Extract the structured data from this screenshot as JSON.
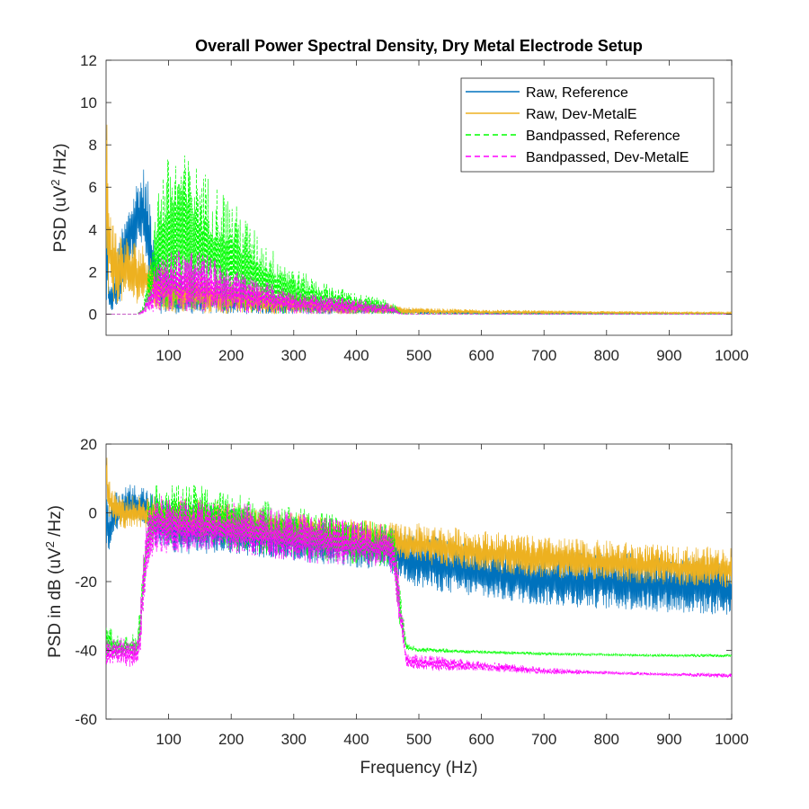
{
  "chart_data": [
    {
      "type": "line",
      "title": "Overall Power Spectral Density, Dry Metal Electrode Setup",
      "xlabel": "Frequency (Hz)",
      "ylabel": "PSD (uV² /Hz)",
      "ylabel_parts": {
        "pre": "PSD (uV",
        "sup": "2",
        "post": " /Hz)"
      },
      "xlim": [
        0,
        1000
      ],
      "ylim": [
        -1,
        12
      ],
      "xticks": [
        100,
        200,
        300,
        400,
        500,
        600,
        700,
        800,
        900,
        1000
      ],
      "yticks": [
        0,
        2,
        4,
        6,
        8,
        10,
        12
      ],
      "grid": false,
      "legend": "top-right",
      "series": [
        {
          "name": "Raw, Reference",
          "color": "#0072BD",
          "dash": "solid",
          "x": [
            0,
            5,
            10,
            20,
            30,
            40,
            50,
            60,
            70,
            80,
            90,
            100,
            120,
            150,
            200,
            250,
            300,
            350,
            400,
            450,
            460,
            500,
            600,
            700,
            800,
            900,
            1000
          ],
          "y_upper": [
            7.0,
            1.2,
            1.5,
            3.5,
            4.5,
            5.5,
            6.5,
            7.0,
            6.0,
            3.5,
            2.5,
            2.0,
            1.8,
            1.5,
            1.3,
            1.0,
            0.8,
            0.6,
            0.5,
            0.4,
            0.3,
            0.2,
            0.12,
            0.1,
            0.08,
            0.07,
            0.06
          ],
          "y_lower": [
            0.0,
            0.1,
            0.1,
            0.1,
            1.5,
            2.5,
            3.0,
            3.0,
            0.5,
            0.05,
            0.0,
            0.0,
            0.0,
            0.0,
            0.0,
            0.0,
            0.0,
            0.0,
            0.0,
            0.0,
            0.0,
            0.0,
            0.0,
            0.0,
            0.0,
            0.0,
            0.0
          ]
        },
        {
          "name": "Raw, Dev-MetalE",
          "color": "#EDB120",
          "dash": "solid",
          "x": [
            0,
            3,
            6,
            10,
            20,
            30,
            40,
            50,
            60,
            70,
            80,
            100,
            150,
            200,
            250,
            300,
            350,
            400,
            450,
            460,
            470,
            500,
            600,
            700,
            800,
            900,
            1000
          ],
          "y_upper": [
            12,
            8.0,
            6.0,
            4.5,
            4.0,
            3.8,
            3.5,
            3.5,
            3.3,
            3.0,
            2.5,
            2.2,
            2.0,
            1.6,
            1.3,
            1.0,
            0.8,
            0.65,
            0.5,
            0.45,
            0.35,
            0.3,
            0.22,
            0.18,
            0.15,
            0.12,
            0.1
          ],
          "y_lower": [
            0.0,
            0.3,
            0.5,
            0.5,
            0.5,
            0.5,
            0.5,
            0.5,
            0.5,
            0.3,
            0.1,
            0.05,
            0.0,
            0.0,
            0.0,
            0.0,
            0.0,
            0.0,
            0.0,
            0.0,
            0.0,
            0.0,
            0.0,
            0.0,
            0.0,
            0.0,
            0.0
          ]
        },
        {
          "name": "Bandpassed, Reference",
          "color": "#00FF00",
          "dash": "dashed",
          "x": [
            0,
            50,
            60,
            70,
            80,
            100,
            120,
            150,
            200,
            250,
            300,
            350,
            400,
            450,
            460,
            470,
            480,
            600,
            800,
            1000
          ],
          "y_upper": [
            0.0,
            0.0,
            0.5,
            2.5,
            6.0,
            7.5,
            7.7,
            7.0,
            5.5,
            3.5,
            2.2,
            1.5,
            1.0,
            0.7,
            0.5,
            0.1,
            0.0,
            0.0,
            0.0,
            0.0
          ],
          "y_lower": [
            0.0,
            0.0,
            0.0,
            0.1,
            0.2,
            0.2,
            0.2,
            0.2,
            0.1,
            0.05,
            0.0,
            0.0,
            0.0,
            0.0,
            0.0,
            0.0,
            0.0,
            0.0,
            0.0,
            0.0
          ]
        },
        {
          "name": "Bandpassed, Dev-MetalE",
          "color": "#FF00FF",
          "dash": "dashed",
          "x": [
            0,
            50,
            60,
            70,
            80,
            100,
            120,
            150,
            200,
            250,
            300,
            350,
            400,
            450,
            460,
            470,
            480,
            600,
            800,
            1000
          ],
          "y_upper": [
            0.0,
            0.0,
            0.3,
            1.5,
            2.5,
            3.0,
            3.2,
            3.0,
            2.2,
            1.6,
            1.1,
            0.9,
            0.7,
            0.55,
            0.4,
            0.05,
            0.0,
            0.0,
            0.0,
            0.0
          ],
          "y_lower": [
            0.0,
            0.0,
            0.0,
            0.1,
            0.1,
            0.1,
            0.1,
            0.1,
            0.05,
            0.05,
            0.0,
            0.0,
            0.0,
            0.0,
            0.0,
            0.0,
            0.0,
            0.0,
            0.0,
            0.0
          ]
        }
      ]
    },
    {
      "type": "line",
      "title": "",
      "xlabel": "Frequency (Hz)",
      "ylabel": "PSD in dB (uV² /Hz)",
      "ylabel_parts": {
        "pre": "PSD in dB (uV",
        "sup": "2",
        "post": " /Hz)"
      },
      "xlim": [
        0,
        1000
      ],
      "ylim": [
        -60,
        20
      ],
      "xticks": [
        100,
        200,
        300,
        400,
        500,
        600,
        700,
        800,
        900,
        1000
      ],
      "yticks": [
        -60,
        -40,
        -20,
        0,
        20
      ],
      "grid": false,
      "legend": "none",
      "series": [
        {
          "name": "Raw, Reference",
          "color": "#0072BD",
          "dash": "solid",
          "x": [
            0,
            5,
            10,
            20,
            30,
            40,
            50,
            60,
            70,
            80,
            100,
            150,
            200,
            250,
            300,
            350,
            400,
            450,
            460,
            500,
            600,
            700,
            800,
            900,
            1000
          ],
          "y_upper": [
            8,
            0,
            5,
            7,
            8,
            8.5,
            8.5,
            8,
            7,
            5,
            4,
            3,
            1.5,
            0,
            -1.5,
            -2.5,
            -3,
            -3.5,
            -5,
            -6,
            -9,
            -11,
            -11,
            -12,
            -13
          ],
          "y_lower": [
            -10,
            -12,
            -8,
            -5,
            -3,
            -2,
            -2,
            -3,
            -6,
            -10,
            -12,
            -12,
            -12,
            -13,
            -14,
            -15,
            -16,
            -17,
            -18,
            -22,
            -25,
            -27,
            -28,
            -29,
            -30
          ]
        },
        {
          "name": "Raw, Dev-MetalE",
          "color": "#EDB120",
          "dash": "solid",
          "x": [
            0,
            3,
            6,
            10,
            20,
            30,
            40,
            50,
            60,
            70,
            80,
            100,
            150,
            200,
            250,
            300,
            350,
            400,
            450,
            460,
            470,
            500,
            600,
            700,
            800,
            900,
            1000
          ],
          "y_upper": [
            18,
            14,
            10,
            8,
            6,
            5,
            5,
            5,
            5,
            5,
            5,
            5,
            4,
            3,
            1.5,
            0,
            -1,
            -2,
            -2.5,
            -3,
            -3,
            -3,
            -5,
            -7,
            -8,
            -9.5,
            -10
          ],
          "y_lower": [
            5,
            0,
            -2,
            -3,
            -4,
            -5,
            -5,
            -5,
            -5,
            -5,
            -5,
            -6,
            -7,
            -8,
            -9,
            -10,
            -11,
            -12,
            -13,
            -13,
            -14,
            -15,
            -17,
            -19,
            -20,
            -21,
            -22
          ]
        },
        {
          "name": "Bandpassed, Reference",
          "color": "#00FF00",
          "dash": "dashed",
          "x": [
            0,
            20,
            40,
            50,
            55,
            60,
            65,
            70,
            80,
            100,
            150,
            200,
            250,
            300,
            350,
            400,
            450,
            460,
            470,
            480,
            500,
            600,
            700,
            800,
            900,
            1000
          ],
          "y_upper": [
            -32,
            -36,
            -35,
            -35,
            -25,
            -10,
            2,
            6,
            8,
            8.5,
            8,
            6,
            4,
            2,
            0,
            -2,
            -3,
            -3,
            -20,
            -38,
            -39,
            -40,
            -40.5,
            -41,
            -41,
            -41
          ],
          "y_lower": [
            -42,
            -42,
            -42,
            -42,
            -38,
            -26,
            -16,
            -12,
            -10,
            -9,
            -9,
            -11,
            -12,
            -13,
            -14,
            -15,
            -16,
            -18,
            -34,
            -40,
            -40.5,
            -41,
            -41.5,
            -41.5,
            -42,
            -42
          ]
        },
        {
          "name": "Bandpassed, Dev-MetalE",
          "color": "#FF00FF",
          "dash": "dashed",
          "x": [
            0,
            20,
            40,
            50,
            55,
            60,
            65,
            70,
            80,
            100,
            150,
            200,
            250,
            300,
            350,
            400,
            450,
            460,
            470,
            480,
            500,
            600,
            700,
            800,
            900,
            1000
          ],
          "y_upper": [
            -37,
            -36,
            -37,
            -36,
            -26,
            -12,
            0,
            4,
            5,
            5,
            4.5,
            3.5,
            2,
            0.5,
            -1,
            -2.5,
            -3,
            -4,
            -22,
            -41,
            -41,
            -43,
            -45,
            -46,
            -46.5,
            -46.5
          ],
          "y_lower": [
            -45,
            -44,
            -45,
            -45,
            -40,
            -28,
            -18,
            -14,
            -12,
            -12,
            -11,
            -12,
            -13,
            -14,
            -15,
            -15,
            -16,
            -19,
            -36,
            -45,
            -46,
            -46,
            -47,
            -47,
            -47.5,
            -48
          ]
        }
      ]
    }
  ]
}
